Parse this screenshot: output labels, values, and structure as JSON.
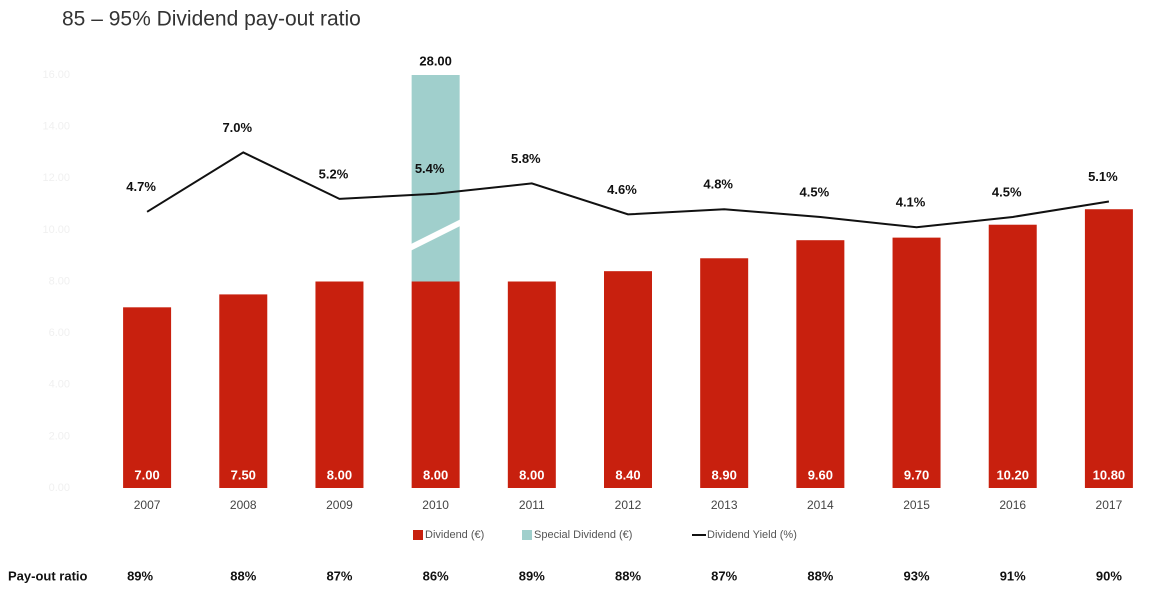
{
  "chart_data": {
    "type": "bar",
    "title": "85 – 95% Dividend pay-out ratio",
    "categories": [
      "2007",
      "2008",
      "2009",
      "2010",
      "2011",
      "2012",
      "2013",
      "2014",
      "2015",
      "2016",
      "2017"
    ],
    "series": [
      {
        "name": "Dividend (€)",
        "color": "#c8200e",
        "values": [
          7.0,
          7.5,
          8.0,
          8.0,
          8.0,
          8.4,
          8.9,
          9.6,
          9.7,
          10.2,
          10.8
        ],
        "value_labels": [
          "7.00",
          "7.50",
          "8.00",
          "8.00",
          "8.00",
          "8.40",
          "8.90",
          "9.60",
          "9.70",
          "10.20",
          "10.80"
        ]
      },
      {
        "name": "Special Dividend (€)",
        "color": "#a0cfcc",
        "values": [
          null,
          null,
          null,
          28.0,
          null,
          null,
          null,
          null,
          null,
          null,
          null
        ],
        "value_labels": [
          null,
          null,
          null,
          "28.00",
          null,
          null,
          null,
          null,
          null,
          null,
          null
        ]
      },
      {
        "name": "Dividend Yield (%)",
        "color": "#111111",
        "type": "line",
        "axis": "y2",
        "values": [
          4.7,
          7.0,
          5.2,
          5.4,
          5.8,
          4.6,
          4.8,
          4.5,
          4.1,
          4.5,
          5.1
        ],
        "value_labels": [
          "4.7%",
          "7.0%",
          "5.2%",
          "5.4%",
          "5.8%",
          "4.6%",
          "4.8%",
          "4.5%",
          "4.1%",
          "4.5%",
          "5.1%"
        ]
      }
    ],
    "ylim": [
      0,
      16
    ],
    "yticks": [
      {
        "value": 0,
        "label": "0.00"
      },
      {
        "value": 2,
        "label": "2.00"
      },
      {
        "value": 4,
        "label": "4.00"
      },
      {
        "value": 6,
        "label": "6.00"
      },
      {
        "value": 8,
        "label": "8.00"
      },
      {
        "value": 10,
        "label": "10.00"
      },
      {
        "value": 12,
        "label": "12.00"
      },
      {
        "value": 14,
        "label": "14.00"
      },
      {
        "value": 16,
        "label": "16.00"
      }
    ],
    "y2lim": [
      -6,
      10
    ],
    "payout_ratio": {
      "label": "Pay-out ratio",
      "values": [
        89,
        88,
        87,
        86,
        89,
        88,
        87,
        88,
        93,
        91,
        90
      ],
      "value_labels": [
        "89%",
        "88%",
        "87%",
        "86%",
        "89%",
        "88%",
        "87%",
        "88%",
        "93%",
        "91%",
        "90%"
      ]
    }
  }
}
